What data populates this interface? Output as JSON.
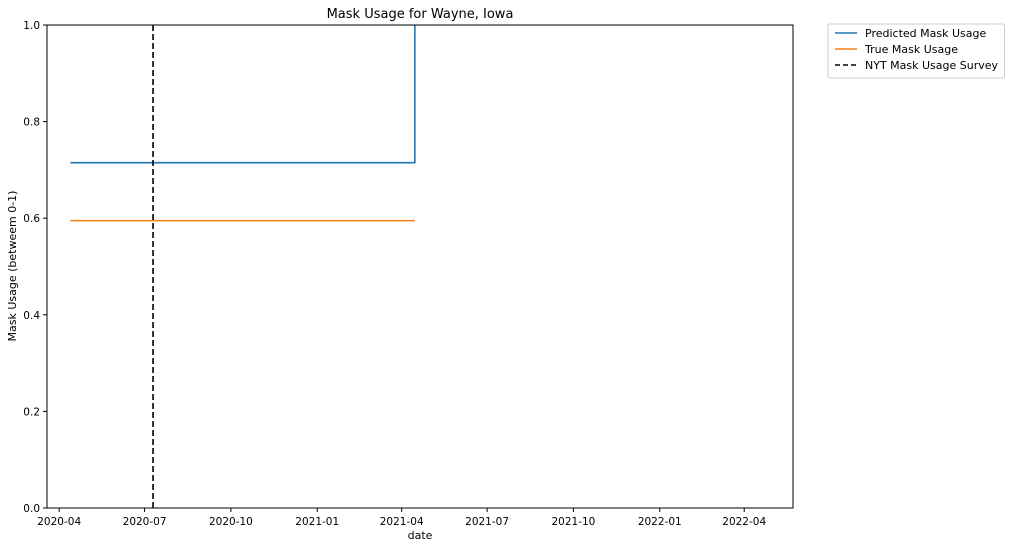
{
  "chart_data": {
    "type": "line",
    "title": "Mask Usage for Wayne, Iowa",
    "xlabel": "date",
    "ylabel": "Mask Usage (betweem 0-1)",
    "xlim": [
      "2020-03-19",
      "2022-05-23"
    ],
    "ylim": [
      0,
      1
    ],
    "x_ticks": [
      "2020-04",
      "2020-07",
      "2020-10",
      "2021-01",
      "2021-04",
      "2021-07",
      "2021-10",
      "2022-01",
      "2022-04"
    ],
    "y_ticks": [
      "0.0",
      "0.2",
      "0.4",
      "0.6",
      "0.8",
      "1.0"
    ],
    "grid": false,
    "legend_position": "outside-top-right",
    "series": [
      {
        "name": "Predicted Mask Usage",
        "style": "solid",
        "color": "#1f77b4",
        "points": [
          {
            "x": "2020-04-13",
            "y": 0.715
          },
          {
            "x": "2021-04-15",
            "y": 0.715
          },
          {
            "x": "2021-04-15",
            "y": 1.0
          }
        ]
      },
      {
        "name": "True Mask Usage",
        "style": "solid",
        "color": "#ff7f0e",
        "points": [
          {
            "x": "2020-04-13",
            "y": 0.595
          },
          {
            "x": "2021-04-15",
            "y": 0.595
          }
        ]
      },
      {
        "name": "NYT Mask Usage Survey",
        "style": "dashed",
        "color": "#000000",
        "vline_x": "2020-07-10"
      }
    ]
  }
}
